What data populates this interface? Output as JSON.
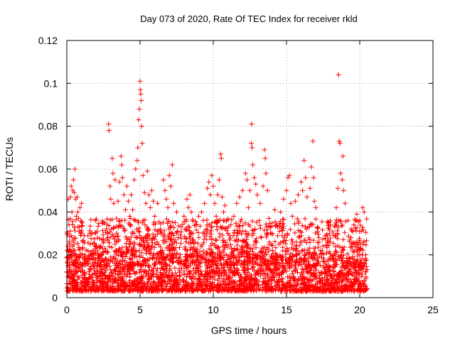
{
  "chart_data": {
    "type": "scatter",
    "title": "Day 073 of 2020, Rate Of TEC Index for receiver rkld",
    "xlabel": "GPS time / hours",
    "ylabel": "ROTI / TECUs",
    "xlim": [
      0,
      25
    ],
    "ylim": [
      0,
      0.12
    ],
    "xticks": [
      0,
      5,
      10,
      15,
      20,
      25
    ],
    "yticks": [
      0,
      0.02,
      0.04,
      0.06,
      0.08,
      0.1,
      0.12
    ],
    "xtick_labels": [
      "0",
      "5",
      "10",
      "15",
      "20",
      "25"
    ],
    "ytick_labels": [
      "0",
      "0.02",
      "0.04",
      "0.06",
      "0.08",
      "0.1",
      "0.12"
    ],
    "grid": true,
    "marker": "plus",
    "color": "#ff0000",
    "series": [
      {
        "points": [
          [
            0.0,
            0.012
          ],
          [
            0.05,
            0.03
          ],
          [
            0.1,
            0.046
          ],
          [
            0.15,
            0.034
          ],
          [
            0.2,
            0.025
          ],
          [
            0.25,
            0.047
          ],
          [
            0.3,
            0.052
          ],
          [
            0.35,
            0.04
          ],
          [
            0.4,
            0.05
          ],
          [
            0.45,
            0.055
          ],
          [
            0.5,
            0.049
          ],
          [
            0.55,
            0.06
          ],
          [
            0.6,
            0.046
          ],
          [
            0.65,
            0.038
          ],
          [
            0.7,
            0.047
          ],
          [
            0.75,
            0.04
          ],
          [
            0.8,
            0.037
          ],
          [
            0.85,
            0.033
          ],
          [
            0.9,
            0.042
          ],
          [
            0.95,
            0.029
          ],
          [
            1.0,
            0.044
          ],
          [
            1.05,
            0.035
          ],
          [
            1.1,
            0.026
          ],
          [
            1.2,
            0.02
          ],
          [
            1.4,
            0.017
          ],
          [
            1.6,
            0.025
          ],
          [
            1.8,
            0.022
          ],
          [
            2.0,
            0.024
          ],
          [
            2.2,
            0.019
          ],
          [
            2.4,
            0.027
          ],
          [
            2.6,
            0.023
          ],
          [
            2.8,
            0.03
          ],
          [
            2.85,
            0.081
          ],
          [
            2.88,
            0.078
          ],
          [
            2.95,
            0.052
          ],
          [
            3.0,
            0.046
          ],
          [
            3.1,
            0.065
          ],
          [
            3.15,
            0.058
          ],
          [
            3.2,
            0.044
          ],
          [
            3.3,
            0.055
          ],
          [
            3.4,
            0.037
          ],
          [
            3.5,
            0.045
          ],
          [
            3.6,
            0.054
          ],
          [
            3.7,
            0.066
          ],
          [
            3.75,
            0.062
          ],
          [
            3.8,
            0.056
          ],
          [
            3.9,
            0.048
          ],
          [
            4.0,
            0.041
          ],
          [
            4.1,
            0.052
          ],
          [
            4.2,
            0.045
          ],
          [
            4.3,
            0.038
          ],
          [
            4.4,
            0.048
          ],
          [
            4.5,
            0.041
          ],
          [
            4.6,
            0.055
          ],
          [
            4.7,
            0.06
          ],
          [
            4.8,
            0.064
          ],
          [
            4.85,
            0.07
          ],
          [
            4.9,
            0.083
          ],
          [
            4.95,
            0.088
          ],
          [
            5.0,
            0.101
          ],
          [
            5.02,
            0.097
          ],
          [
            5.05,
            0.095
          ],
          [
            5.08,
            0.092
          ],
          [
            5.1,
            0.08
          ],
          [
            5.15,
            0.072
          ],
          [
            5.2,
            0.057
          ],
          [
            5.3,
            0.049
          ],
          [
            5.4,
            0.044
          ],
          [
            5.5,
            0.059
          ],
          [
            5.6,
            0.048
          ],
          [
            5.7,
            0.042
          ],
          [
            5.8,
            0.05
          ],
          [
            5.9,
            0.045
          ],
          [
            6.0,
            0.038
          ],
          [
            6.2,
            0.044
          ],
          [
            6.4,
            0.032
          ],
          [
            6.6,
            0.055
          ],
          [
            6.7,
            0.05
          ],
          [
            6.8,
            0.046
          ],
          [
            6.9,
            0.042
          ],
          [
            7.0,
            0.057
          ],
          [
            7.1,
            0.052
          ],
          [
            7.2,
            0.062
          ],
          [
            7.3,
            0.044
          ],
          [
            7.4,
            0.035
          ],
          [
            7.5,
            0.04
          ],
          [
            7.6,
            0.028
          ],
          [
            7.8,
            0.033
          ],
          [
            8.0,
            0.038
          ],
          [
            8.2,
            0.046
          ],
          [
            8.3,
            0.042
          ],
          [
            8.4,
            0.048
          ],
          [
            8.5,
            0.04
          ],
          [
            8.6,
            0.03
          ],
          [
            8.8,
            0.034
          ],
          [
            9.0,
            0.038
          ],
          [
            9.2,
            0.04
          ],
          [
            9.4,
            0.044
          ],
          [
            9.6,
            0.051
          ],
          [
            9.7,
            0.054
          ],
          [
            9.8,
            0.048
          ],
          [
            9.9,
            0.057
          ],
          [
            10.0,
            0.052
          ],
          [
            10.1,
            0.044
          ],
          [
            10.2,
            0.038
          ],
          [
            10.3,
            0.048
          ],
          [
            10.4,
            0.055
          ],
          [
            10.5,
            0.067
          ],
          [
            10.55,
            0.065
          ],
          [
            10.6,
            0.047
          ],
          [
            10.7,
            0.04
          ],
          [
            10.8,
            0.043
          ],
          [
            10.9,
            0.036
          ],
          [
            11.0,
            0.03
          ],
          [
            11.2,
            0.034
          ],
          [
            11.4,
            0.038
          ],
          [
            11.6,
            0.044
          ],
          [
            11.8,
            0.047
          ],
          [
            12.0,
            0.05
          ],
          [
            12.2,
            0.058
          ],
          [
            12.3,
            0.055
          ],
          [
            12.4,
            0.042
          ],
          [
            12.5,
            0.05
          ],
          [
            12.6,
            0.072
          ],
          [
            12.62,
            0.081
          ],
          [
            12.65,
            0.07
          ],
          [
            12.7,
            0.062
          ],
          [
            12.8,
            0.056
          ],
          [
            12.9,
            0.053
          ],
          [
            13.0,
            0.048
          ],
          [
            13.2,
            0.044
          ],
          [
            13.4,
            0.052
          ],
          [
            13.5,
            0.069
          ],
          [
            13.55,
            0.065
          ],
          [
            13.6,
            0.058
          ],
          [
            13.7,
            0.05
          ],
          [
            13.8,
            0.037
          ],
          [
            14.0,
            0.03
          ],
          [
            14.2,
            0.041
          ],
          [
            14.4,
            0.033
          ],
          [
            14.6,
            0.04
          ],
          [
            14.8,
            0.046
          ],
          [
            15.0,
            0.05
          ],
          [
            15.1,
            0.056
          ],
          [
            15.2,
            0.057
          ],
          [
            15.3,
            0.044
          ],
          [
            15.4,
            0.038
          ],
          [
            15.6,
            0.045
          ],
          [
            15.8,
            0.048
          ],
          [
            16.0,
            0.054
          ],
          [
            16.1,
            0.05
          ],
          [
            16.2,
            0.064
          ],
          [
            16.3,
            0.056
          ],
          [
            16.4,
            0.047
          ],
          [
            16.6,
            0.051
          ],
          [
            16.7,
            0.061
          ],
          [
            16.8,
            0.073
          ],
          [
            16.85,
            0.056
          ],
          [
            16.9,
            0.045
          ],
          [
            17.0,
            0.042
          ],
          [
            17.1,
            0.033
          ],
          [
            17.3,
            0.022
          ],
          [
            17.5,
            0.017
          ],
          [
            17.7,
            0.014
          ],
          [
            17.9,
            0.013
          ],
          [
            18.0,
            0.018
          ],
          [
            18.2,
            0.029
          ],
          [
            18.3,
            0.033
          ],
          [
            18.4,
            0.042
          ],
          [
            18.5,
            0.051
          ],
          [
            18.55,
            0.104
          ],
          [
            18.6,
            0.073
          ],
          [
            18.65,
            0.072
          ],
          [
            18.7,
            0.058
          ],
          [
            18.8,
            0.055
          ],
          [
            18.85,
            0.066
          ],
          [
            18.9,
            0.05
          ],
          [
            19.0,
            0.044
          ],
          [
            19.2,
            0.036
          ],
          [
            19.4,
            0.028
          ],
          [
            19.6,
            0.034
          ],
          [
            19.8,
            0.039
          ],
          [
            20.0,
            0.036
          ],
          [
            20.1,
            0.031
          ],
          [
            20.2,
            0.042
          ],
          [
            20.3,
            0.04
          ],
          [
            20.4,
            0.02
          ],
          [
            20.5,
            0.013
          ],
          [
            20.5,
            0.004
          ]
        ]
      }
    ]
  }
}
